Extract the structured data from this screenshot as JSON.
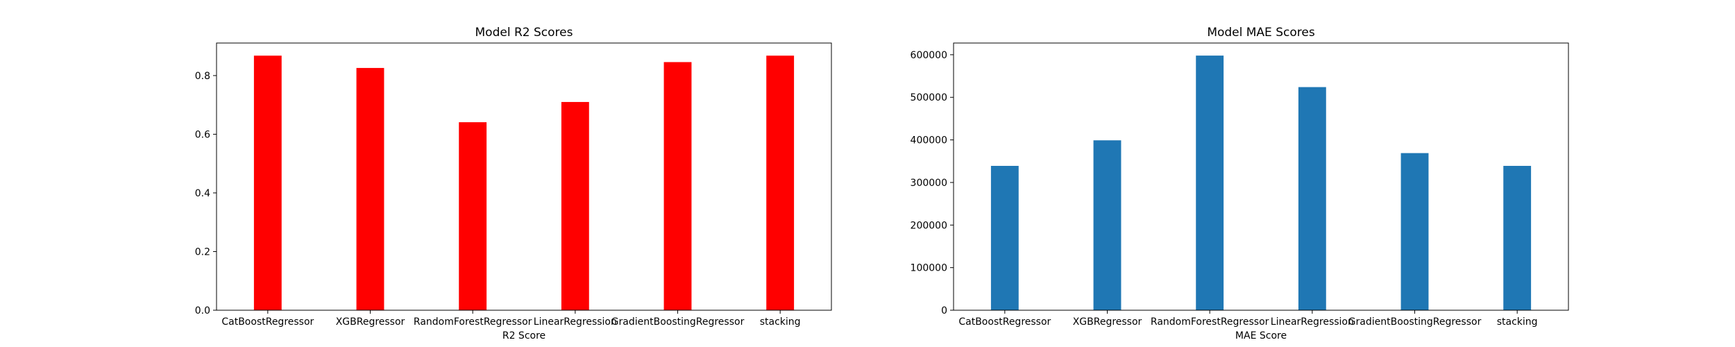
{
  "chart_data": [
    {
      "type": "bar",
      "title": "Model R2 Scores",
      "xlabel": "R2 Score",
      "ylabel": "",
      "categories": [
        "CatBoostRegressor",
        "XGBRegressor",
        "RandomForestRegressor",
        "LinearRegression",
        "GradientBoostingRegressor",
        "stacking"
      ],
      "values": [
        0.868,
        0.826,
        0.641,
        0.71,
        0.846,
        0.868
      ],
      "color": "#ff0000",
      "ylim": [
        0,
        0.911
      ],
      "yticks": [
        0.0,
        0.2,
        0.4,
        0.6,
        0.8
      ],
      "ytick_labels": [
        "0.0",
        "0.2",
        "0.4",
        "0.6",
        "0.8"
      ],
      "grid": false,
      "legend": "none"
    },
    {
      "type": "bar",
      "title": "Model MAE Scores",
      "xlabel": "MAE Score",
      "ylabel": "",
      "categories": [
        "CatBoostRegressor",
        "XGBRegressor",
        "RandomForestRegressor",
        "LinearRegression",
        "GradientBoostingRegressor",
        "stacking"
      ],
      "values": [
        339000,
        399000,
        598000,
        524000,
        369000,
        339000
      ],
      "color": "#1f77b4",
      "ylim": [
        0,
        627500
      ],
      "yticks": [
        0,
        100000,
        200000,
        300000,
        400000,
        500000,
        600000
      ],
      "ytick_labels": [
        "0",
        "100000",
        "200000",
        "300000",
        "400000",
        "500000",
        "600000"
      ],
      "grid": false,
      "legend": "none"
    }
  ]
}
